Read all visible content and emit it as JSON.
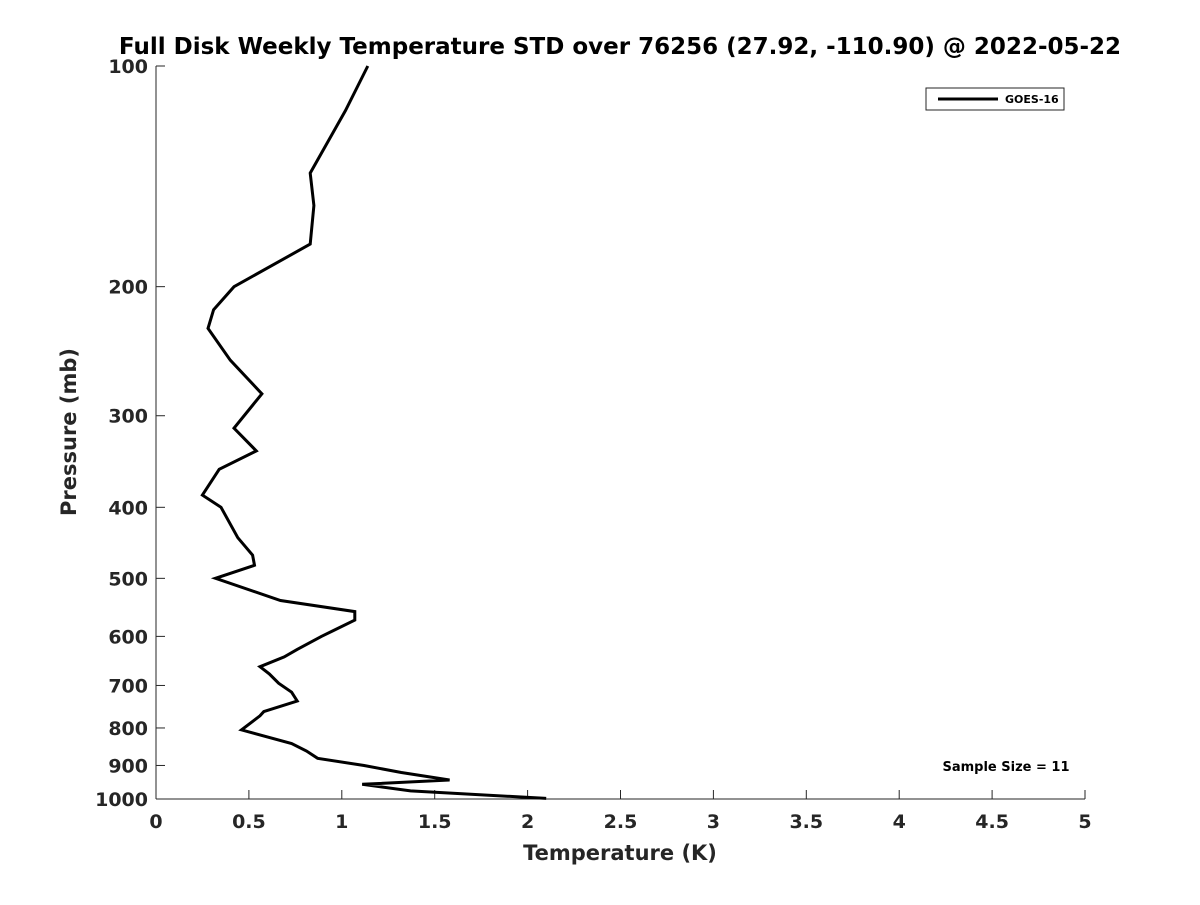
{
  "chart_data": {
    "type": "line",
    "title": "Full Disk Weekly Temperature STD over 76256 (27.92, -110.90) @ 2022-05-22",
    "xlabel": "Temperature (K)",
    "ylabel": "Pressure (mb)",
    "xlim": [
      0,
      5
    ],
    "ylim": [
      100,
      1000
    ],
    "yscale": "log",
    "yreversed": true,
    "x_ticks": [
      "0",
      "0.5",
      "1",
      "1.5",
      "2",
      "2.5",
      "3",
      "3.5",
      "4",
      "4.5",
      "5"
    ],
    "y_ticks": [
      "100",
      "200",
      "300",
      "400",
      "500",
      "600",
      "700",
      "800",
      "900",
      "1000"
    ],
    "grid": false,
    "legend": {
      "placement": "top-right",
      "entries": [
        "GOES-16"
      ]
    },
    "annotation": "Sample Size = 11",
    "series": [
      {
        "name": "GOES-16",
        "color": "#000000",
        "x": [
          1.14,
          1.02,
          0.83,
          0.85,
          0.83,
          0.42,
          0.31,
          0.28,
          0.4,
          0.57,
          0.42,
          0.54,
          0.34,
          0.25,
          0.35,
          0.44,
          0.52,
          0.53,
          0.32,
          0.67,
          1.07,
          1.07,
          0.95,
          0.89,
          0.76,
          0.69,
          0.56,
          0.61,
          0.66,
          0.73,
          0.76,
          0.58,
          0.56,
          0.46,
          0.73,
          0.81,
          0.87,
          1.12,
          1.32,
          1.58,
          1.11,
          1.37,
          2.1
        ],
        "y": [
          100,
          115,
          140,
          155,
          175,
          200,
          215,
          228,
          252,
          280,
          312,
          335,
          355,
          385,
          400,
          440,
          465,
          480,
          500,
          536,
          555,
          570,
          590,
          600,
          625,
          640,
          660,
          675,
          695,
          715,
          735,
          760,
          770,
          805,
          840,
          860,
          880,
          900,
          920,
          942,
          955,
          975,
          998
        ]
      }
    ]
  }
}
